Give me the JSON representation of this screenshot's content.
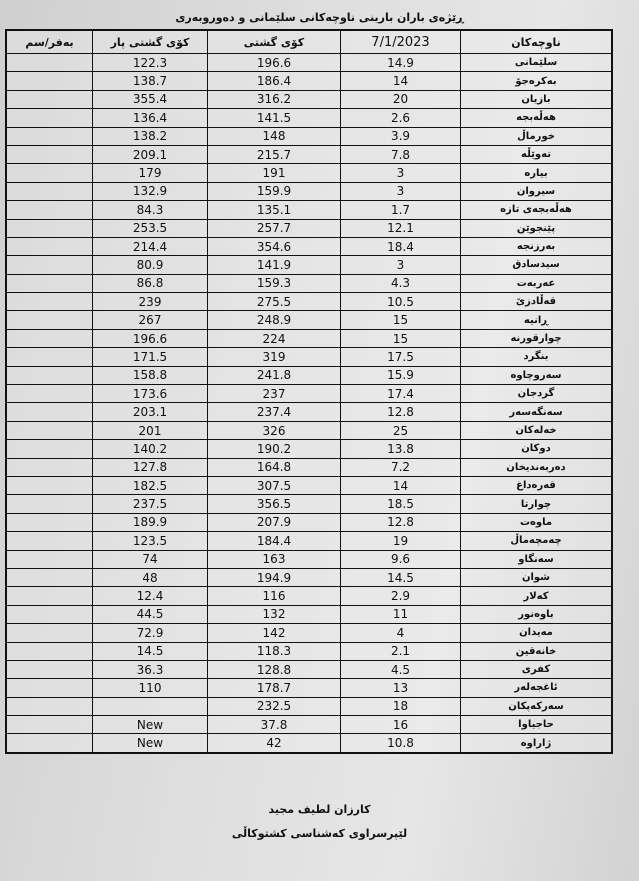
{
  "title": "ڕێژەی باران بارینی ناوچەکانی سلێمانی و دەوروبەری",
  "headers": {
    "snow": "بەفر/سم",
    "last_year_total": "کۆی گشتی پار",
    "total": "کۆی گشتی",
    "date": "7/1/2023",
    "region": "ناوچەکان"
  },
  "rows": [
    {
      "region": "سلێمانی",
      "day": "14.9",
      "total": "196.6",
      "last": "122.3",
      "snow": ""
    },
    {
      "region": "بەکرەجۆ",
      "day": "14",
      "total": "186.4",
      "last": "138.7",
      "snow": ""
    },
    {
      "region": "بازیان",
      "day": "20",
      "total": "316.2",
      "last": "355.4",
      "snow": ""
    },
    {
      "region": "هەڵەبجە",
      "day": "2.6",
      "total": "141.5",
      "last": "136.4",
      "snow": ""
    },
    {
      "region": "خورماڵ",
      "day": "3.9",
      "total": "148",
      "last": "138.2",
      "snow": ""
    },
    {
      "region": "تەوێڵە",
      "day": "7.8",
      "total": "215.7",
      "last": "209.1",
      "snow": ""
    },
    {
      "region": "بیارە",
      "day": "3",
      "total": "191",
      "last": "179",
      "snow": ""
    },
    {
      "region": "سیروان",
      "day": "3",
      "total": "159.9",
      "last": "132.9",
      "snow": ""
    },
    {
      "region": "هەڵەبجەی تازە",
      "day": "1.7",
      "total": "135.1",
      "last": "84.3",
      "snow": ""
    },
    {
      "region": "پێنجوێن",
      "day": "12.1",
      "total": "257.7",
      "last": "253.5",
      "snow": ""
    },
    {
      "region": "بەرزنجە",
      "day": "18.4",
      "total": "354.6",
      "last": "214.4",
      "snow": ""
    },
    {
      "region": "سیدسادق",
      "day": "3",
      "total": "141.9",
      "last": "80.9",
      "snow": ""
    },
    {
      "region": "عەربەت",
      "day": "4.3",
      "total": "159.3",
      "last": "86.8",
      "snow": ""
    },
    {
      "region": "قەڵادزێ",
      "day": "10.5",
      "total": "275.5",
      "last": "239",
      "snow": ""
    },
    {
      "region": "ڕانیە",
      "day": "15",
      "total": "248.9",
      "last": "267",
      "snow": ""
    },
    {
      "region": "چوارقورنە",
      "day": "15",
      "total": "224",
      "last": "196.6",
      "snow": ""
    },
    {
      "region": "بنگرد",
      "day": "17.5",
      "total": "319",
      "last": "171.5",
      "snow": ""
    },
    {
      "region": "سەروچاوە",
      "day": "15.9",
      "total": "241.8",
      "last": "158.8",
      "snow": ""
    },
    {
      "region": "گردجان",
      "day": "17.4",
      "total": "237",
      "last": "173.6",
      "snow": ""
    },
    {
      "region": "سەنگەسەر",
      "day": "12.8",
      "total": "237.4",
      "last": "203.1",
      "snow": ""
    },
    {
      "region": "خەلەکان",
      "day": "25",
      "total": "326",
      "last": "201",
      "snow": ""
    },
    {
      "region": "دوکان",
      "day": "13.8",
      "total": "190.2",
      "last": "140.2",
      "snow": ""
    },
    {
      "region": "دەربەندیخان",
      "day": "7.2",
      "total": "164.8",
      "last": "127.8",
      "snow": ""
    },
    {
      "region": "قەرەداغ",
      "day": "14",
      "total": "307.5",
      "last": "182.5",
      "snow": ""
    },
    {
      "region": "چوارتا",
      "day": "18.5",
      "total": "356.5",
      "last": "237.5",
      "snow": ""
    },
    {
      "region": "ماوەت",
      "day": "12.8",
      "total": "207.9",
      "last": "189.9",
      "snow": ""
    },
    {
      "region": "چەمچەماڵ",
      "day": "19",
      "total": "184.4",
      "last": "123.5",
      "snow": ""
    },
    {
      "region": "سەنگاو",
      "day": "9.6",
      "total": "163",
      "last": "74",
      "snow": ""
    },
    {
      "region": "شوان",
      "day": "14.5",
      "total": "194.9",
      "last": "48",
      "snow": ""
    },
    {
      "region": "کەلار",
      "day": "2.9",
      "total": "116",
      "last": "12.4",
      "snow": ""
    },
    {
      "region": "باوەنور",
      "day": "11",
      "total": "132",
      "last": "44.5",
      "snow": ""
    },
    {
      "region": "مەیدان",
      "day": "4",
      "total": "142",
      "last": "72.9",
      "snow": ""
    },
    {
      "region": "خانەقین",
      "day": "2.1",
      "total": "118.3",
      "last": "14.5",
      "snow": ""
    },
    {
      "region": "کفری",
      "day": "4.5",
      "total": "128.8",
      "last": "36.3",
      "snow": ""
    },
    {
      "region": "ئاغجەلەر",
      "day": "13",
      "total": "178.7",
      "last": "110",
      "snow": ""
    },
    {
      "region": "سەرکەپکان",
      "day": "18",
      "total": "232.5",
      "last": "",
      "snow": ""
    },
    {
      "region": "حاجیاوا",
      "day": "16",
      "total": "37.8",
      "last": "New",
      "snow": ""
    },
    {
      "region": "ژاراوە",
      "day": "10.8",
      "total": "42",
      "last": "New",
      "snow": ""
    }
  ],
  "signature": {
    "name": "کارزان لطیف مجید",
    "role": "لێپرسراوی کەشناسی کشتوکاڵی"
  }
}
